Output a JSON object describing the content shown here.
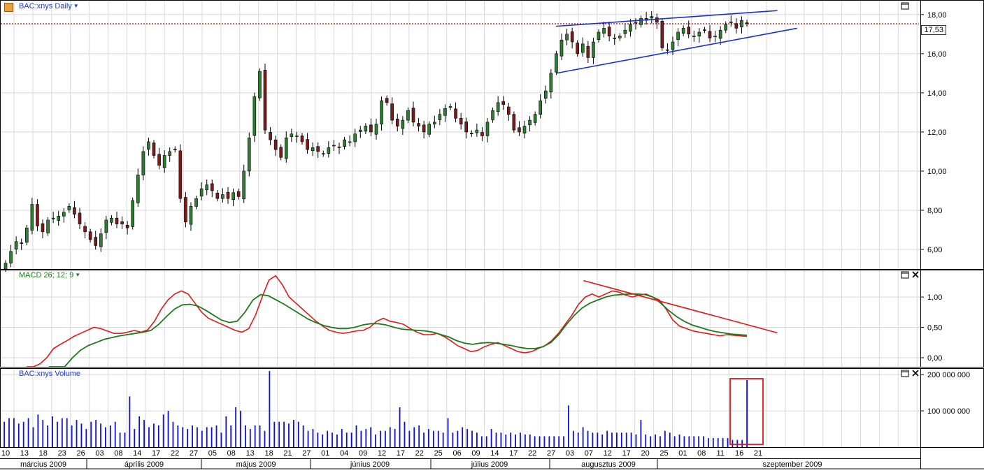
{
  "header": {
    "price_title": "BAC:xnys Daily",
    "macd_title": "MACD 26; 12; 9",
    "volume_title": "BAC:xnys Volume"
  },
  "icons": {
    "pane_max": "window-maximize-icon",
    "pane_close": "close-icon",
    "dropdown": "caret-down-icon",
    "logo": "chart-logo-icon"
  },
  "colors": {
    "up_candle": "#2e7d32",
    "down_candle": "#7b1b1b",
    "macd_line": "#e01818",
    "signal_line": "#1f7a1f",
    "volume_bar": "#1010d0",
    "trendline": "#1a2fd0",
    "last_price_line": "#d40000",
    "annotation": "#e01818"
  },
  "chart_data": {
    "type": "candlestick",
    "price": {
      "last_label": "17,53",
      "last": 17.53,
      "ylim": [
        5.0,
        18.6
      ],
      "yticks": [
        6,
        8,
        10,
        12,
        14,
        16,
        18
      ],
      "ytick_labels": [
        "6,00",
        "8,00",
        "10,00",
        "12,00",
        "14,00",
        "16,00",
        "18,00"
      ],
      "closes": [
        5.3,
        5.9,
        6.4,
        6.3,
        7.1,
        8.3,
        7.2,
        6.9,
        7.5,
        7.6,
        7.7,
        7.9,
        8.2,
        7.8,
        7.3,
        6.9,
        6.5,
        6.2,
        6.8,
        7.5,
        7.6,
        7.3,
        7.3,
        7.1,
        8.5,
        9.8,
        11.0,
        11.5,
        10.8,
        10.3,
        10.8,
        11.0,
        11.1,
        8.6,
        7.4,
        8.2,
        8.6,
        9.1,
        9.3,
        9.0,
        8.6,
        8.8,
        8.6,
        8.9,
        8.7,
        10.0,
        11.7,
        13.8,
        15.1,
        12.1,
        11.6,
        11.1,
        10.7,
        11.7,
        11.9,
        11.8,
        11.5,
        11.1,
        11.2,
        11.0,
        10.9,
        11.2,
        11.3,
        11.2,
        11.6,
        11.5,
        11.9,
        12.1,
        12.3,
        12.0,
        12.4,
        13.6,
        13.5,
        12.6,
        12.3,
        12.6,
        13.1,
        12.5,
        12.3,
        12.0,
        12.4,
        12.5,
        12.9,
        13.2,
        13.3,
        12.7,
        12.4,
        12.0,
        11.9,
        12.1,
        11.8,
        12.5,
        13.1,
        13.5,
        13.4,
        12.9,
        12.1,
        12.0,
        12.3,
        12.6,
        12.9,
        13.6,
        14.1,
        15.0,
        16.0,
        16.7,
        17.0,
        16.6,
        16.0,
        16.5,
        15.8,
        16.6,
        17.1,
        17.3,
        16.9,
        16.8,
        16.9,
        17.2,
        17.5,
        17.6,
        17.8,
        17.7,
        17.9,
        17.6,
        16.3,
        16.2,
        16.6,
        17.1,
        17.3,
        17.0,
        16.9,
        17.1,
        17.2,
        16.8,
        16.9,
        17.2,
        17.5,
        17.6,
        17.3,
        17.7,
        17.53
      ],
      "trendlines": [
        {
          "from": [
            0.565,
            17.4
          ],
          "to": [
            0.79,
            18.2
          ]
        },
        {
          "from": [
            0.565,
            15.0
          ],
          "to": [
            0.81,
            17.3
          ]
        }
      ]
    },
    "macd": {
      "ylim": [
        -0.15,
        1.45
      ],
      "yticks": [
        0.0,
        0.5,
        1.0
      ],
      "ytick_labels": [
        "0,00",
        "0,50",
        "1,00"
      ],
      "macd": [
        -0.3,
        -0.2,
        -0.1,
        0.0,
        0.15,
        0.22,
        0.28,
        0.35,
        0.4,
        0.45,
        0.5,
        0.48,
        0.44,
        0.4,
        0.4,
        0.42,
        0.45,
        0.42,
        0.46,
        0.6,
        0.8,
        0.95,
        1.05,
        1.1,
        1.05,
        0.9,
        0.75,
        0.65,
        0.6,
        0.55,
        0.5,
        0.45,
        0.42,
        0.48,
        0.7,
        1.0,
        1.28,
        1.35,
        1.2,
        1.0,
        0.9,
        0.8,
        0.7,
        0.6,
        0.52,
        0.45,
        0.42,
        0.4,
        0.42,
        0.44,
        0.45,
        0.5,
        0.6,
        0.65,
        0.6,
        0.58,
        0.55,
        0.48,
        0.42,
        0.38,
        0.38,
        0.4,
        0.35,
        0.28,
        0.2,
        0.15,
        0.1,
        0.12,
        0.18,
        0.22,
        0.25,
        0.2,
        0.15,
        0.1,
        0.08,
        0.1,
        0.15,
        0.2,
        0.28,
        0.4,
        0.55,
        0.7,
        0.88,
        1.0,
        1.05,
        1.0,
        1.05,
        1.1,
        1.08,
        1.03,
        1.0,
        1.03,
        1.05,
        1.0,
        0.95,
        0.8,
        0.62,
        0.52,
        0.48,
        0.44,
        0.42,
        0.4,
        0.38,
        0.36,
        0.38,
        0.37,
        0.36,
        0.35
      ],
      "signal": [
        -0.45,
        -0.3,
        -0.15,
        0.0,
        0.12,
        0.2,
        0.25,
        0.3,
        0.33,
        0.36,
        0.38,
        0.4,
        0.42,
        0.45,
        0.55,
        0.68,
        0.8,
        0.87,
        0.88,
        0.85,
        0.78,
        0.7,
        0.62,
        0.58,
        0.6,
        0.75,
        0.95,
        1.04,
        1.02,
        0.95,
        0.88,
        0.8,
        0.72,
        0.64,
        0.58,
        0.53,
        0.5,
        0.48,
        0.48,
        0.5,
        0.54,
        0.56,
        0.56,
        0.54,
        0.5,
        0.47,
        0.46,
        0.45,
        0.44,
        0.42,
        0.38,
        0.34,
        0.28,
        0.24,
        0.22,
        0.24,
        0.25,
        0.24,
        0.22,
        0.2,
        0.17,
        0.15,
        0.15,
        0.18,
        0.25,
        0.38,
        0.55,
        0.7,
        0.82,
        0.9,
        0.95,
        1.0,
        1.03,
        1.04,
        1.05,
        1.05,
        1.04,
        1.0,
        0.9,
        0.78,
        0.68,
        0.6,
        0.54,
        0.5,
        0.46,
        0.43,
        0.41,
        0.39,
        0.38,
        0.37
      ],
      "annotation_line": {
        "from": [
          0.593,
          1.27
        ],
        "to": [
          0.79,
          0.41
        ]
      }
    },
    "volume": {
      "ylim": [
        0,
        210000000
      ],
      "yticks": [
        100000000,
        200000000
      ],
      "ytick_labels": [
        "100 000 000",
        "200 000 000"
      ],
      "values": [
        70,
        80,
        80,
        65,
        70,
        80,
        55,
        90,
        75,
        60,
        85,
        70,
        80,
        80,
        60,
        75,
        65,
        50,
        70,
        75,
        65,
        55,
        60,
        70,
        40,
        40,
        140,
        50,
        85,
        75,
        55,
        65,
        60,
        90,
        100,
        70,
        60,
        55,
        50,
        60,
        55,
        45,
        55,
        55,
        60,
        40,
        85,
        60,
        110,
        100,
        60,
        50,
        60,
        60,
        45,
        210,
        70,
        70,
        70,
        65,
        75,
        70,
        60,
        45,
        50,
        40,
        35,
        45,
        40,
        35,
        50,
        40,
        40,
        60,
        45,
        50,
        55,
        35,
        45,
        45,
        55,
        50,
        110,
        70,
        45,
        55,
        60,
        40,
        50,
        45,
        45,
        40,
        80,
        40,
        45,
        55,
        50,
        45,
        40,
        30,
        30,
        50,
        40,
        40,
        35,
        40,
        35,
        40,
        35,
        35,
        30,
        30,
        30,
        30,
        30,
        30,
        30,
        115,
        45,
        40,
        55,
        45,
        40,
        40,
        35,
        45,
        40,
        40,
        40,
        40,
        40,
        35,
        75,
        35,
        30,
        35,
        30,
        45,
        40,
        30,
        35,
        30,
        30,
        30,
        30,
        30,
        25,
        25,
        25,
        25,
        25,
        20,
        20,
        20,
        185
      ],
      "highlight_box": true
    },
    "x_axis": {
      "day_labels": [
        "10",
        "13",
        "18",
        "23",
        "26",
        "03",
        "08",
        "14",
        "17",
        "22",
        "27",
        "05",
        "08",
        "13",
        "18",
        "21",
        "27",
        "01",
        "04",
        "09",
        "12",
        "17",
        "22",
        "25",
        "06",
        "09",
        "14",
        "17",
        "22",
        "27",
        "03",
        "07",
        "12",
        "17",
        "20",
        "25",
        "01",
        "08",
        "11",
        "16",
        "21"
      ],
      "month_labels": [
        "március 2009",
        "április 2009",
        "május 2009",
        "június 2009",
        "július 2009",
        "augusztus 2009",
        "szeptember 2009"
      ]
    }
  }
}
